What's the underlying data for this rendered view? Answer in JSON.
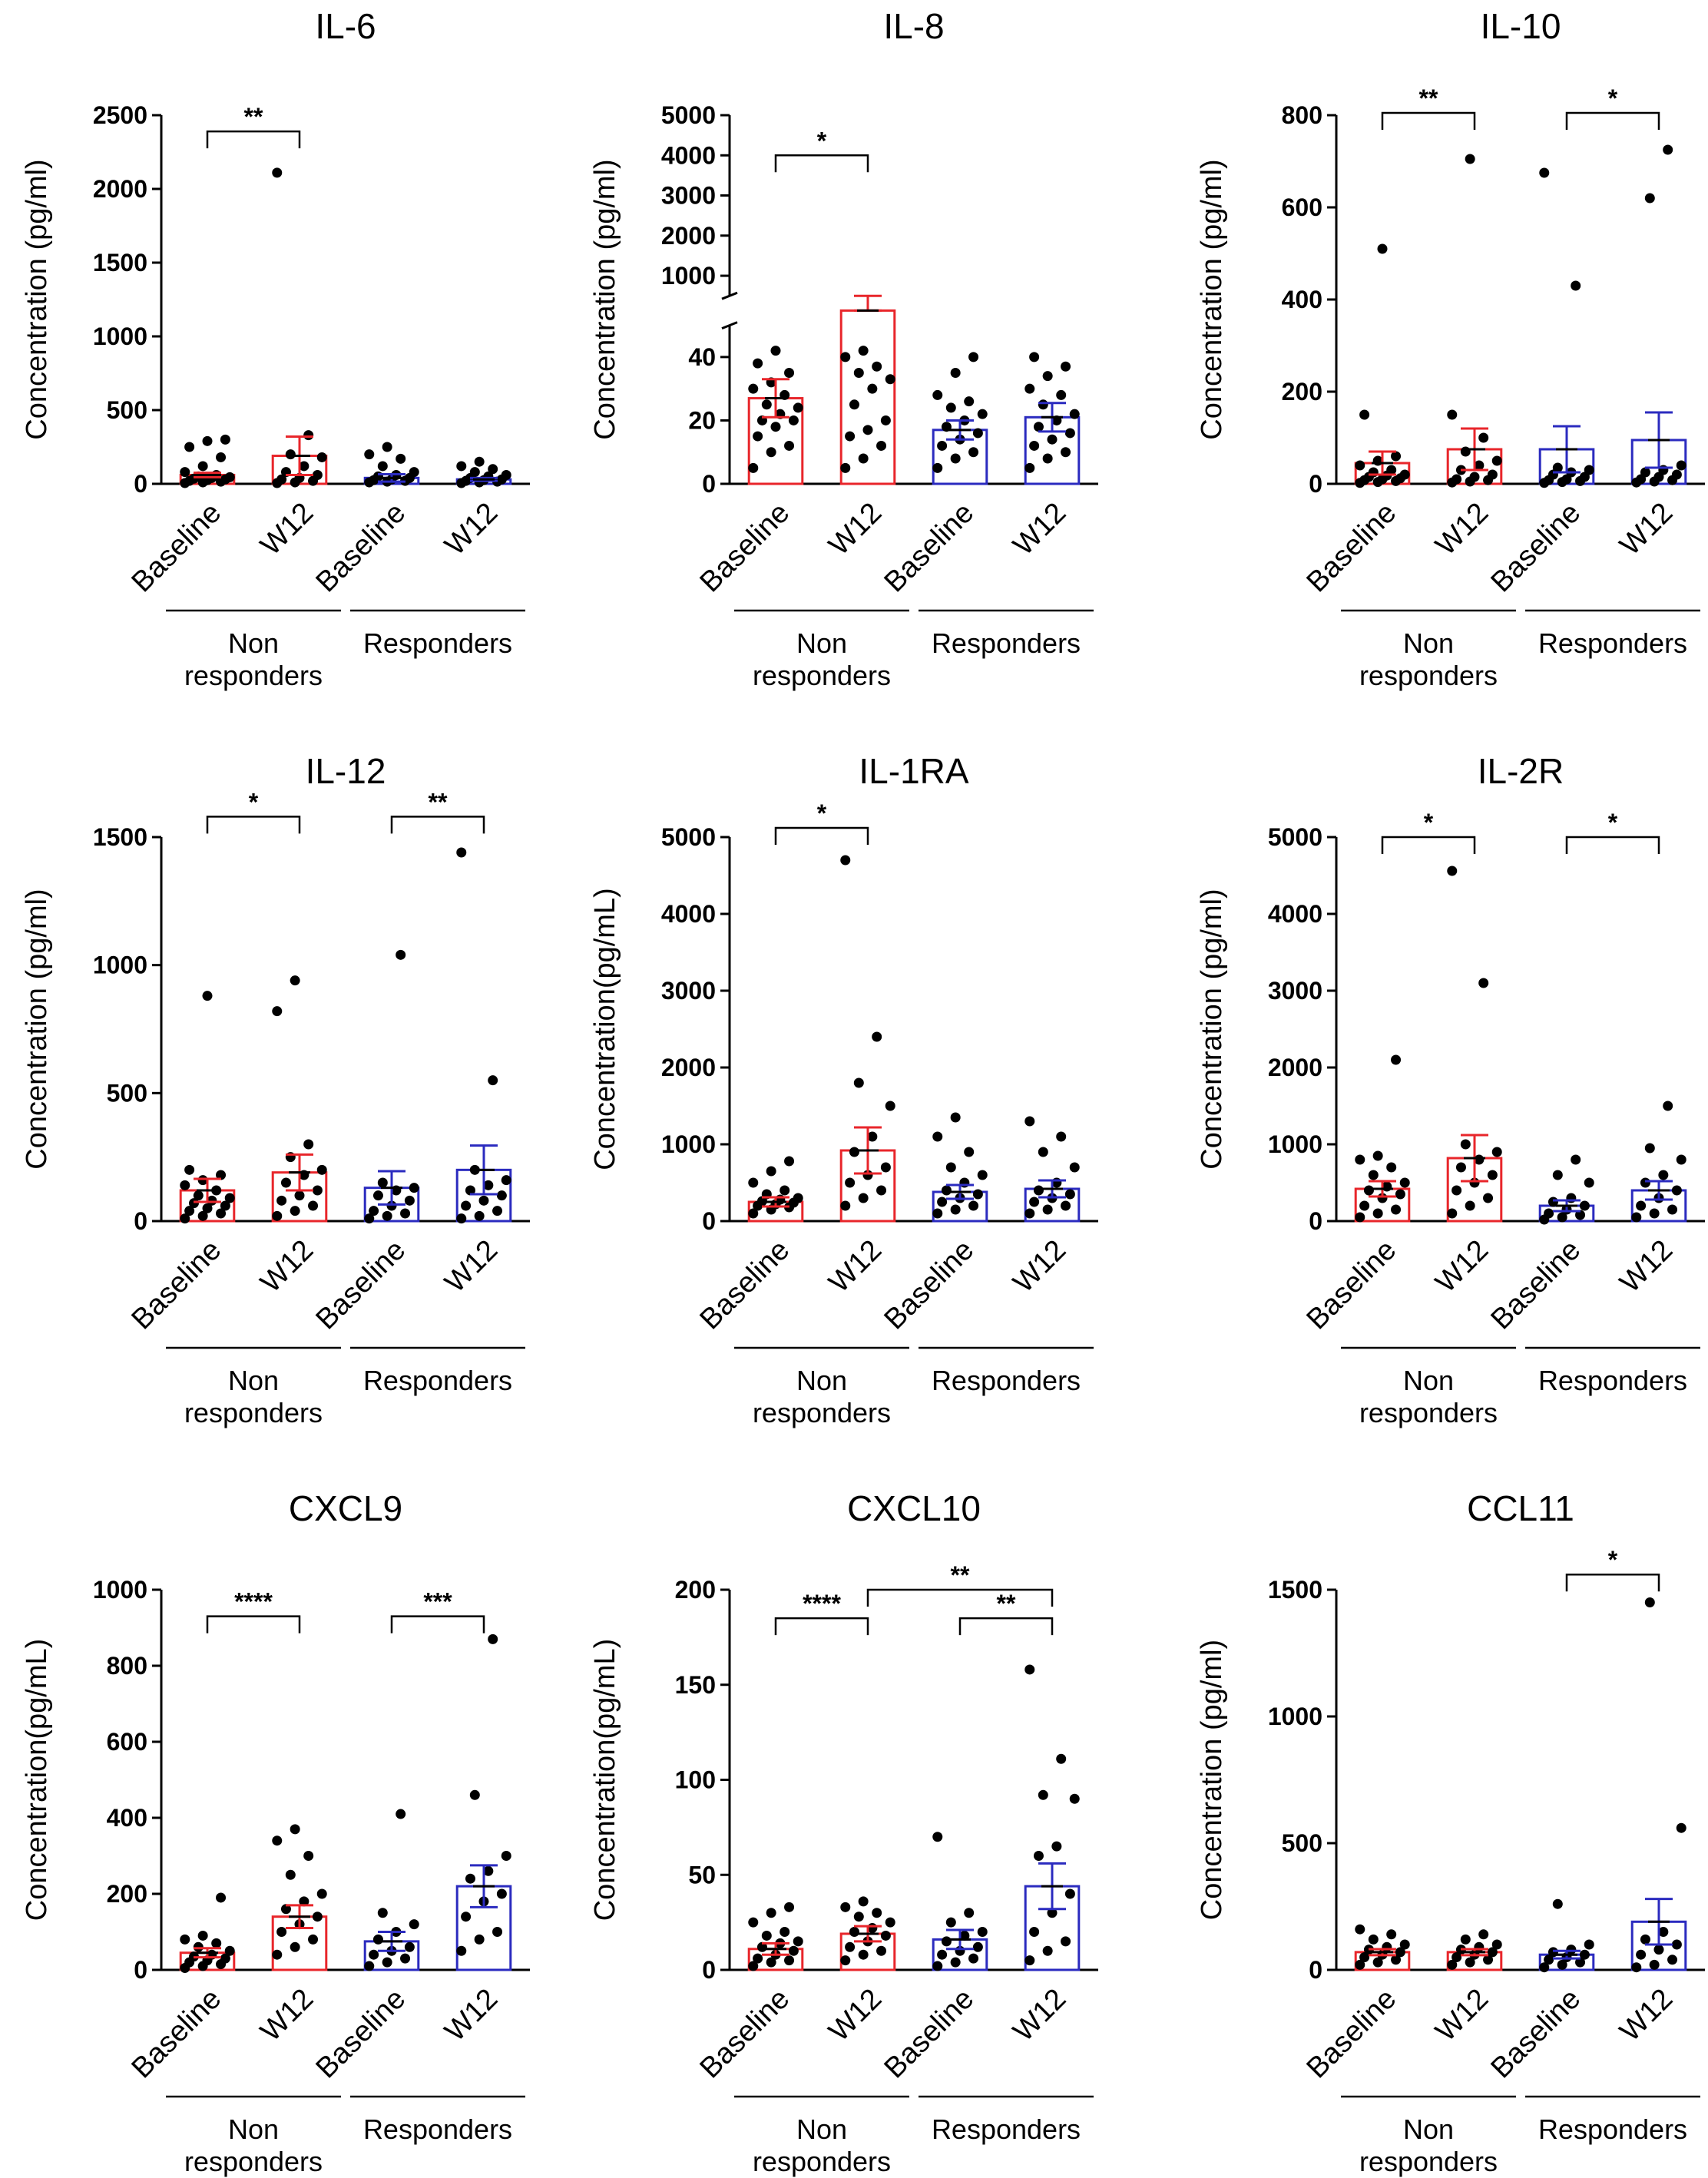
{
  "figure": {
    "panel_titles": [
      "IL-6",
      "IL-8",
      "IL-10",
      "IL-12",
      "IL-1RA",
      "IL-2R",
      "CXCL9",
      "CXCL10",
      "CCL11"
    ],
    "group_labels": {
      "non_line1": "Non",
      "non_line2": "responders",
      "responders": "Responders"
    },
    "category_labels": [
      "Baseline",
      "W12",
      "Baseline",
      "W12"
    ],
    "colors": {
      "non_responders": "#e8262b",
      "responders": "#2b2bbf",
      "points": "#000000"
    }
  },
  "chart_data": [
    {
      "type": "bar",
      "title": "IL-6",
      "ylabel": "Concentration (pg/ml)",
      "categories": [
        "Baseline",
        "W12",
        "Baseline",
        "W12"
      ],
      "groups": [
        "Non responders",
        "Non responders",
        "Responders",
        "Responders"
      ],
      "ylim": [
        0,
        2500
      ],
      "ticks": [
        0,
        500,
        1000,
        1500,
        2000,
        2500
      ],
      "means": [
        60,
        190,
        40,
        30
      ],
      "sem": [
        15,
        130,
        25,
        10
      ],
      "points": [
        [
          5,
          10,
          15,
          20,
          25,
          30,
          35,
          40,
          45,
          50,
          60,
          80,
          120,
          180,
          250,
          290,
          300
        ],
        [
          5,
          10,
          20,
          30,
          40,
          60,
          80,
          120,
          180,
          200,
          330,
          2110
        ],
        [
          10,
          15,
          20,
          25,
          30,
          40,
          50,
          60,
          80,
          120,
          170,
          200,
          250
        ],
        [
          5,
          10,
          15,
          20,
          25,
          30,
          40,
          50,
          60,
          80,
          100,
          120,
          150
        ]
      ],
      "significance": [
        {
          "from": 0,
          "to": 1,
          "label": "**",
          "y": 2390
        }
      ]
    },
    {
      "type": "bar",
      "title": "IL-8",
      "ylabel": "Concentration (pg/ml)",
      "categories": [
        "Baseline",
        "W12",
        "Baseline",
        "W12"
      ],
      "groups": [
        "Non responders",
        "Non responders",
        "Responders",
        "Responders"
      ],
      "ylim": [
        0,
        5000
      ],
      "ticks": [
        0,
        20,
        40,
        1000,
        2000,
        3000,
        4000,
        5000
      ],
      "axis_break": [
        50,
        500
      ],
      "means": [
        27,
        300,
        17,
        21
      ],
      "sem": [
        6,
        200,
        3,
        4.5
      ],
      "points": [
        [
          5,
          10,
          12,
          15,
          18,
          20,
          20,
          22,
          24,
          25,
          28,
          30,
          32,
          35,
          38,
          42
        ],
        [
          5,
          8,
          12,
          15,
          17,
          20,
          25,
          30,
          33,
          35,
          37,
          40,
          42
        ],
        [
          5,
          8,
          10,
          12,
          14,
          16,
          18,
          20,
          22,
          24,
          26,
          28,
          35,
          40
        ],
        [
          5,
          8,
          10,
          12,
          14,
          16,
          18,
          20,
          22,
          25,
          28,
          30,
          34,
          37,
          40
        ]
      ],
      "significance": [
        {
          "from": 0,
          "to": 1,
          "label": "*",
          "y": 4000
        }
      ]
    },
    {
      "type": "bar",
      "title": "IL-10",
      "ylabel": "Concentration (pg/ml)",
      "categories": [
        "Baseline",
        "W12",
        "Baseline",
        "W12"
      ],
      "groups": [
        "Non responders",
        "Non responders",
        "Responders",
        "Responders"
      ],
      "ylim": [
        0,
        800
      ],
      "ticks": [
        0,
        200,
        400,
        600,
        800
      ],
      "means": [
        45,
        75,
        75,
        95
      ],
      "sem": [
        25,
        45,
        50,
        60
      ],
      "points": [
        [
          2,
          4,
          6,
          8,
          10,
          12,
          15,
          18,
          20,
          25,
          30,
          40,
          50,
          60,
          150,
          510
        ],
        [
          3,
          5,
          8,
          10,
          15,
          20,
          30,
          40,
          50,
          70,
          100,
          150,
          705
        ],
        [
          2,
          4,
          6,
          8,
          10,
          15,
          20,
          25,
          30,
          35,
          430,
          675
        ],
        [
          3,
          5,
          8,
          10,
          15,
          20,
          25,
          30,
          40,
          620,
          725
        ]
      ],
      "significance": [
        {
          "from": 0,
          "to": 1,
          "label": "**",
          "y": 805
        },
        {
          "from": 2,
          "to": 3,
          "label": "*",
          "y": 805
        }
      ]
    },
    {
      "type": "bar",
      "title": "IL-12",
      "ylabel": "Concentration (pg/ml)",
      "categories": [
        "Baseline",
        "W12",
        "Baseline",
        "W12"
      ],
      "groups": [
        "Non responders",
        "Non responders",
        "Responders",
        "Responders"
      ],
      "ylim": [
        0,
        1500
      ],
      "ticks": [
        0,
        500,
        1000,
        1500
      ],
      "means": [
        120,
        190,
        130,
        200
      ],
      "sem": [
        45,
        70,
        65,
        95
      ],
      "points": [
        [
          10,
          20,
          30,
          40,
          50,
          60,
          70,
          80,
          90,
          100,
          120,
          140,
          160,
          180,
          200,
          880
        ],
        [
          20,
          40,
          60,
          80,
          100,
          120,
          150,
          180,
          200,
          250,
          300,
          820,
          940
        ],
        [
          10,
          20,
          30,
          40,
          60,
          80,
          100,
          120,
          130,
          150,
          1040
        ],
        [
          10,
          20,
          40,
          60,
          80,
          100,
          120,
          140,
          160,
          200,
          550,
          1440
        ]
      ],
      "significance": [
        {
          "from": 0,
          "to": 1,
          "label": "*",
          "y": 1580
        },
        {
          "from": 2,
          "to": 3,
          "label": "**",
          "y": 1580
        }
      ]
    },
    {
      "type": "bar",
      "title": "IL-1RA",
      "ylabel": "Concentration(pg/mL)",
      "categories": [
        "Baseline",
        "W12",
        "Baseline",
        "W12"
      ],
      "groups": [
        "Non responders",
        "Non responders",
        "Responders",
        "Responders"
      ],
      "ylim": [
        0,
        5000
      ],
      "ticks": [
        0,
        1000,
        2000,
        3000,
        4000,
        5000
      ],
      "means": [
        250,
        920,
        380,
        420
      ],
      "sem": [
        60,
        300,
        90,
        110
      ],
      "points": [
        [
          100,
          150,
          180,
          200,
          220,
          240,
          260,
          280,
          300,
          350,
          400,
          500,
          650,
          780
        ],
        [
          200,
          300,
          400,
          500,
          600,
          700,
          900,
          1100,
          1500,
          1800,
          2400,
          4700
        ],
        [
          100,
          150,
          200,
          250,
          300,
          350,
          400,
          500,
          600,
          700,
          900,
          1100,
          1350
        ],
        [
          100,
          150,
          200,
          250,
          300,
          350,
          400,
          500,
          700,
          900,
          1100,
          1300
        ]
      ],
      "significance": [
        {
          "from": 0,
          "to": 1,
          "label": "*",
          "y": 5120
        }
      ]
    },
    {
      "type": "bar",
      "title": "IL-2R",
      "ylabel": "Concentration (pg/ml)",
      "categories": [
        "Baseline",
        "W12",
        "Baseline",
        "W12"
      ],
      "groups": [
        "Non responders",
        "Non responders",
        "Responders",
        "Responders"
      ],
      "ylim": [
        0,
        5000
      ],
      "ticks": [
        0,
        1000,
        2000,
        3000,
        4000,
        5000
      ],
      "means": [
        420,
        820,
        200,
        400
      ],
      "sem": [
        100,
        300,
        70,
        120
      ],
      "points": [
        [
          50,
          100,
          150,
          200,
          300,
          350,
          400,
          450,
          500,
          600,
          700,
          800,
          850,
          2100
        ],
        [
          100,
          200,
          300,
          400,
          500,
          600,
          700,
          800,
          900,
          1000,
          3100,
          4560
        ],
        [
          20,
          50,
          80,
          100,
          150,
          200,
          250,
          300,
          500,
          600,
          800
        ],
        [
          50,
          100,
          150,
          200,
          300,
          400,
          500,
          600,
          800,
          950,
          1500
        ]
      ],
      "significance": [
        {
          "from": 0,
          "to": 1,
          "label": "*",
          "y": 5000
        },
        {
          "from": 2,
          "to": 3,
          "label": "*",
          "y": 5000
        }
      ]
    },
    {
      "type": "bar",
      "title": "CXCL9",
      "ylabel": "Concentration(pg/mL)",
      "categories": [
        "Baseline",
        "W12",
        "Baseline",
        "W12"
      ],
      "groups": [
        "Non responders",
        "Non responders",
        "Responders",
        "Responders"
      ],
      "ylim": [
        0,
        1000
      ],
      "ticks": [
        0,
        200,
        400,
        600,
        800,
        1000
      ],
      "means": [
        45,
        140,
        75,
        220
      ],
      "sem": [
        12,
        30,
        25,
        55
      ],
      "points": [
        [
          5,
          10,
          15,
          20,
          25,
          30,
          35,
          40,
          50,
          60,
          70,
          80,
          90,
          190
        ],
        [
          40,
          60,
          80,
          100,
          120,
          140,
          160,
          180,
          200,
          250,
          300,
          340,
          370
        ],
        [
          10,
          20,
          30,
          40,
          50,
          60,
          80,
          100,
          120,
          150,
          410
        ],
        [
          50,
          80,
          100,
          140,
          180,
          200,
          240,
          260,
          300,
          460,
          870
        ]
      ],
      "significance": [
        {
          "from": 0,
          "to": 1,
          "label": "****",
          "y": 930
        },
        {
          "from": 2,
          "to": 3,
          "label": "***",
          "y": 930
        }
      ]
    },
    {
      "type": "bar",
      "title": "CXCL10",
      "ylabel": "Concentration(pg/mL)",
      "categories": [
        "Baseline",
        "W12",
        "Baseline",
        "W12"
      ],
      "groups": [
        "Non responders",
        "Non responders",
        "Responders",
        "Responders"
      ],
      "ylim": [
        0,
        200
      ],
      "ticks": [
        0,
        50,
        100,
        150,
        200
      ],
      "means": [
        11,
        19,
        16,
        44
      ],
      "sem": [
        3,
        4,
        5,
        12
      ],
      "points": [
        [
          2,
          4,
          5,
          6,
          8,
          10,
          12,
          14,
          15,
          18,
          20,
          25,
          30,
          33
        ],
        [
          5,
          8,
          10,
          12,
          15,
          18,
          20,
          22,
          25,
          28,
          30,
          33,
          36
        ],
        [
          2,
          4,
          6,
          8,
          10,
          12,
          15,
          18,
          20,
          25,
          30,
          70
        ],
        [
          5,
          10,
          15,
          20,
          30,
          40,
          60,
          65,
          90,
          92,
          111,
          158
        ]
      ],
      "significance": [
        {
          "from": 0,
          "to": 1,
          "label": "****",
          "y": 185
        },
        {
          "from": 2,
          "to": 3,
          "label": "**",
          "y": 185
        },
        {
          "from": 1,
          "to": 3,
          "label": "**",
          "y": 200
        }
      ]
    },
    {
      "type": "bar",
      "title": "CCL11",
      "ylabel": "Concentration (pg/ml)",
      "categories": [
        "Baseline",
        "W12",
        "Baseline",
        "W12"
      ],
      "groups": [
        "Non responders",
        "Non responders",
        "Responders",
        "Responders"
      ],
      "ylim": [
        0,
        1500
      ],
      "ticks": [
        0,
        500,
        1000,
        1500
      ],
      "means": [
        70,
        70,
        60,
        190
      ],
      "sem": [
        12,
        12,
        15,
        90
      ],
      "points": [
        [
          20,
          30,
          40,
          50,
          60,
          70,
          80,
          90,
          100,
          120,
          140,
          160
        ],
        [
          20,
          30,
          40,
          50,
          60,
          70,
          80,
          90,
          100,
          120,
          140
        ],
        [
          10,
          20,
          30,
          40,
          50,
          60,
          70,
          80,
          100,
          260
        ],
        [
          10,
          20,
          40,
          60,
          80,
          100,
          120,
          150,
          560,
          1450
        ]
      ],
      "significance": [
        {
          "from": 2,
          "to": 3,
          "label": "*",
          "y": 1560
        }
      ]
    }
  ]
}
